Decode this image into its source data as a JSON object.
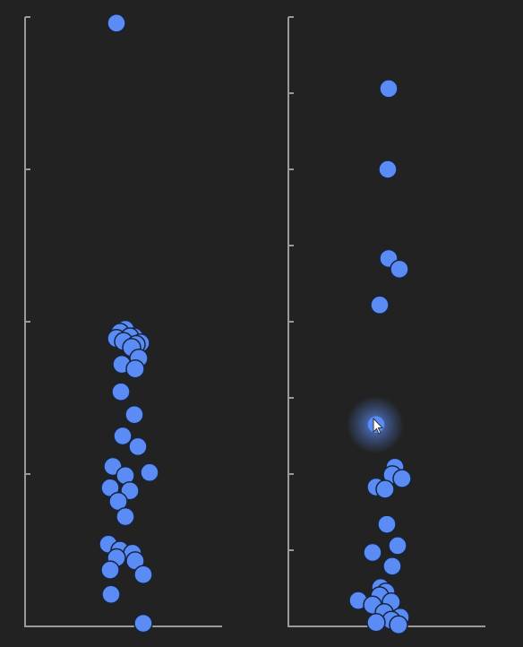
{
  "chart_data": [
    {
      "type": "scatter",
      "title": "",
      "xlabel": "",
      "ylabel": "",
      "ylim": [
        0,
        4
      ],
      "grid": false,
      "marker_color": "#5b8cf5",
      "values": [
        3.96,
        1.95,
        1.93,
        1.9,
        1.9,
        1.89,
        1.87,
        1.86,
        1.85,
        1.83,
        1.76,
        1.72,
        1.69,
        1.54,
        1.39,
        1.25,
        1.18,
        1.05,
        1.01,
        0.99,
        0.91,
        0.89,
        0.82,
        0.72,
        0.54,
        0.5,
        0.48,
        0.45,
        0.43,
        0.37,
        0.34,
        0.21,
        0.02
      ]
    },
    {
      "type": "scatter",
      "title": "",
      "xlabel": "",
      "ylabel": "",
      "ylim": [
        0,
        8
      ],
      "grid": false,
      "marker_color": "#5b8cf5",
      "values": [
        7.06,
        6.0,
        4.83,
        4.69,
        4.22,
        2.65,
        2.09,
        1.99,
        1.94,
        1.83,
        1.8,
        1.34,
        1.06,
        0.97,
        0.79,
        0.51,
        0.45,
        0.4,
        0.34,
        0.32,
        0.28,
        0.18,
        0.12,
        0.08,
        0.05,
        0.02
      ]
    }
  ],
  "cursor": {
    "icon": "mouse-pointer-icon",
    "glow_color": "#5b8cf5"
  }
}
